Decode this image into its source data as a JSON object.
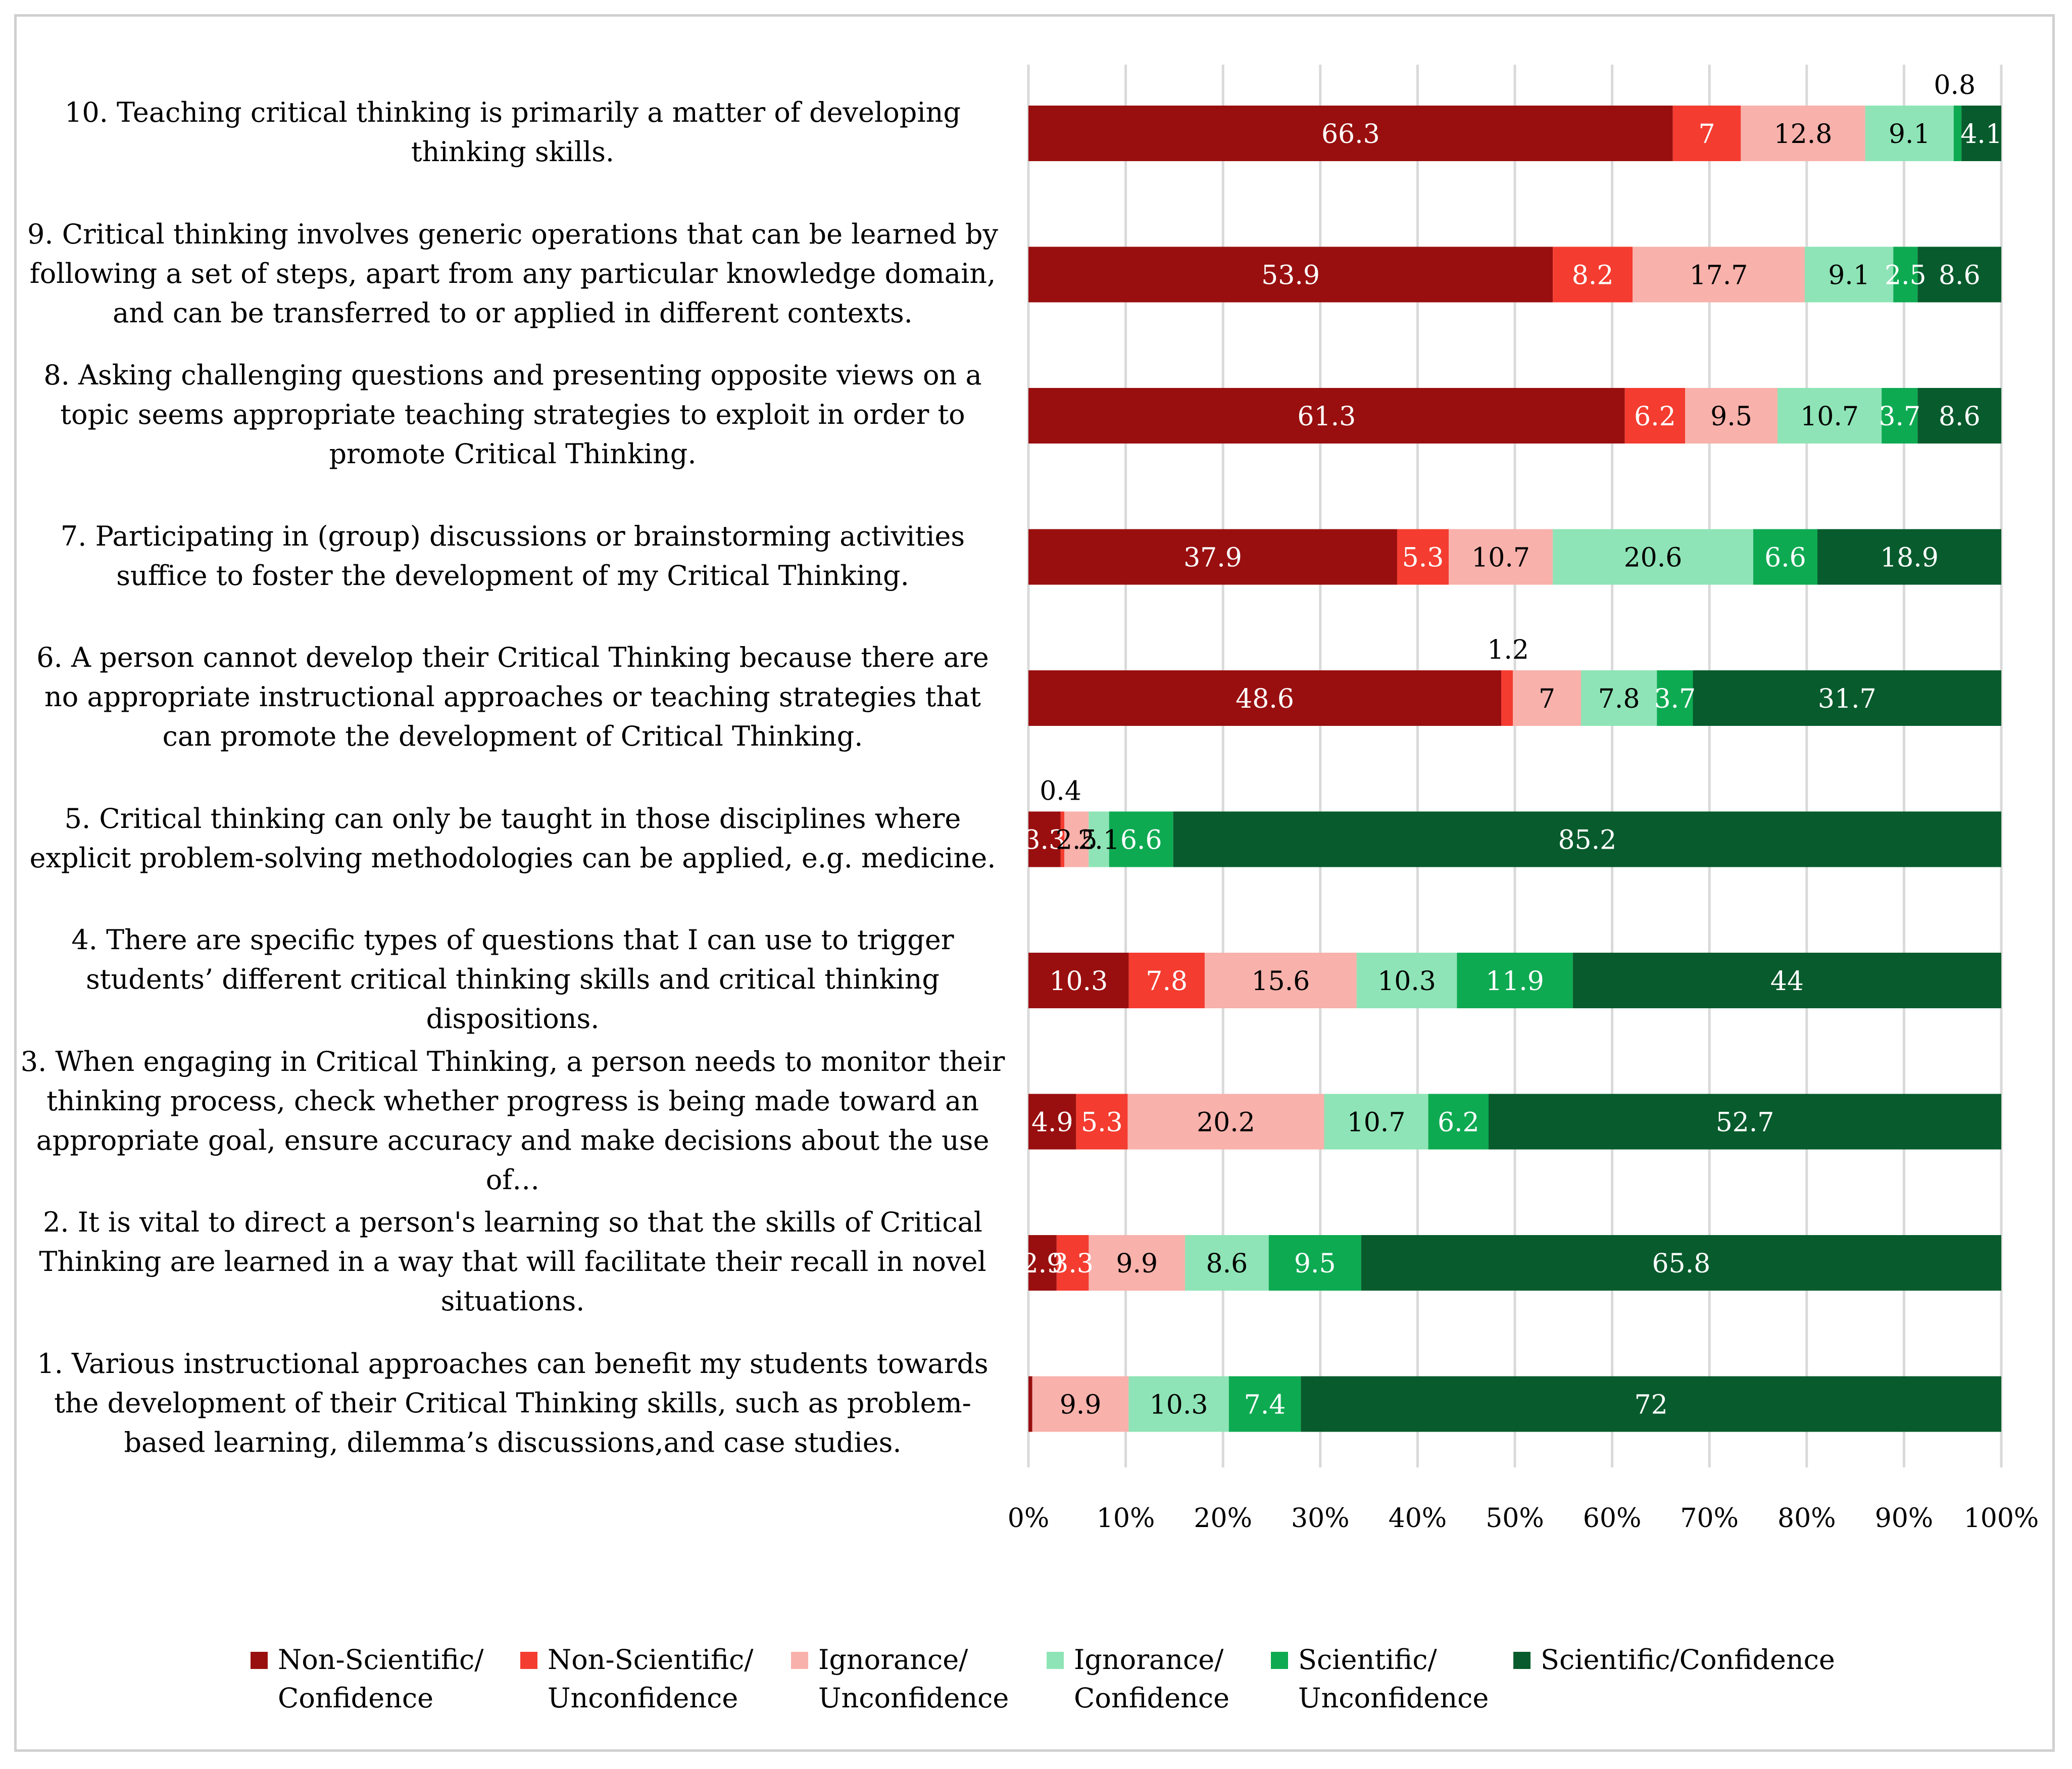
{
  "chart_data": {
    "type": "bar",
    "orientation": "horizontal",
    "stacked": "percent",
    "categories": [
      "10. Teaching critical thinking is primarily a matter of developing thinking skills.",
      "9. Critical thinking involves generic operations that can be learned by following a set of steps, apart from any particular knowledge domain, and can be transferred to or applied in different contexts.",
      "8. Asking challenging questions and presenting opposite views on a topic seems appropriate teaching strategies to exploit in order to promote Critical Thinking.",
      "7. Participating in (group) discussions or brainstorming activities suffice to foster the development of my Critical Thinking.",
      "6. A person cannot develop their Critical Thinking because there are no appropriate instructional approaches or teaching strategies that can promote the development of Critical Thinking.",
      "5. Critical thinking can only be taught in those disciplines where explicit problem-solving methodologies can be applied, e.g. medicine.",
      "4. There are specific types of questions that I can use to trigger students’ different critical thinking skills and critical thinking dispositions.",
      "3. When engaging in Critical Thinking, a person needs to monitor their thinking process, check whether progress is being made toward an appropriate goal, ensure accuracy and make decisions about the use of…",
      "2. It is vital to direct a person's learning so that the skills of Critical Thinking are learned in a way that will facilitate their recall in novel situations.",
      "1. Various instructional approaches can benefit my students towards the development of their Critical Thinking skills, such as problem-based learning, dilemma’s discussions,and case studies."
    ],
    "series": [
      {
        "name": "Non-Scientific/\nConfidence",
        "color": "#990f0f",
        "values": [
          66.3,
          53.9,
          61.3,
          37.9,
          48.6,
          3.3,
          10.3,
          4.9,
          2.9,
          0.4
        ]
      },
      {
        "name": "Non-Scientific/\nUnconfidence",
        "color": "#f43c30",
        "values": [
          7,
          8.2,
          6.2,
          5.3,
          1.2,
          0.4,
          7.8,
          5.3,
          3.3,
          0
        ]
      },
      {
        "name": "Ignorance/\nUnconfidence",
        "color": "#f8b1ab",
        "values": [
          12.8,
          17.7,
          9.5,
          10.7,
          7,
          2.5,
          15.6,
          20.2,
          9.9,
          9.9
        ]
      },
      {
        "name": "Ignorance/\nConfidence",
        "color": "#8ee4b6",
        "values": [
          9.1,
          9.1,
          10.7,
          20.6,
          7.8,
          2.1,
          10.3,
          10.7,
          8.6,
          10.3
        ]
      },
      {
        "name": "Scientific/\nUnconfidence",
        "color": "#0eaa52",
        "values": [
          0.8,
          2.5,
          3.7,
          6.6,
          3.7,
          6.6,
          11.9,
          6.2,
          9.5,
          7.4
        ]
      },
      {
        "name": "Scientific/Confidence",
        "color": "#075b2c",
        "values": [
          4.1,
          8.6,
          8.6,
          18.9,
          31.7,
          85.2,
          44,
          52.7,
          65.8,
          72
        ]
      }
    ],
    "data_labels": [
      [
        "66.3",
        "7",
        "12.8",
        "9.1",
        "0.8",
        "4.1"
      ],
      [
        "53.9",
        "8.2",
        "17.7",
        "9.1",
        "2.5",
        "8.6"
      ],
      [
        "61.3",
        "6.2",
        "9.5",
        "10.7",
        "3.7",
        "8.6"
      ],
      [
        "37.9",
        "5.3",
        "10.7",
        "20.6",
        "6.6",
        "18.9"
      ],
      [
        "48.6",
        "1.2",
        "7",
        "7.8",
        "3.7",
        "31.7"
      ],
      [
        "3.3",
        "0.4",
        "2.5",
        "2.1",
        "6.6",
        "85.2"
      ],
      [
        "10.3",
        "7.8",
        "15.6",
        "10.3",
        "11.9",
        "44"
      ],
      [
        "4.9",
        "5.3",
        "20.2",
        "10.7",
        "6.2",
        "52.7"
      ],
      [
        "2.9",
        "3.3",
        "9.9",
        "8.6",
        "9.5",
        "65.8"
      ],
      [
        "",
        "",
        "9.9",
        "10.3",
        "7.4",
        "72"
      ]
    ],
    "xlim": [
      0,
      100
    ],
    "x_ticks": [
      "0%",
      "10%",
      "20%",
      "30%",
      "40%",
      "50%",
      "60%",
      "70%",
      "80%",
      "90%",
      "100%"
    ],
    "grid": "vertical",
    "legend_position": "bottom",
    "title": "",
    "xlabel": "",
    "ylabel": ""
  }
}
